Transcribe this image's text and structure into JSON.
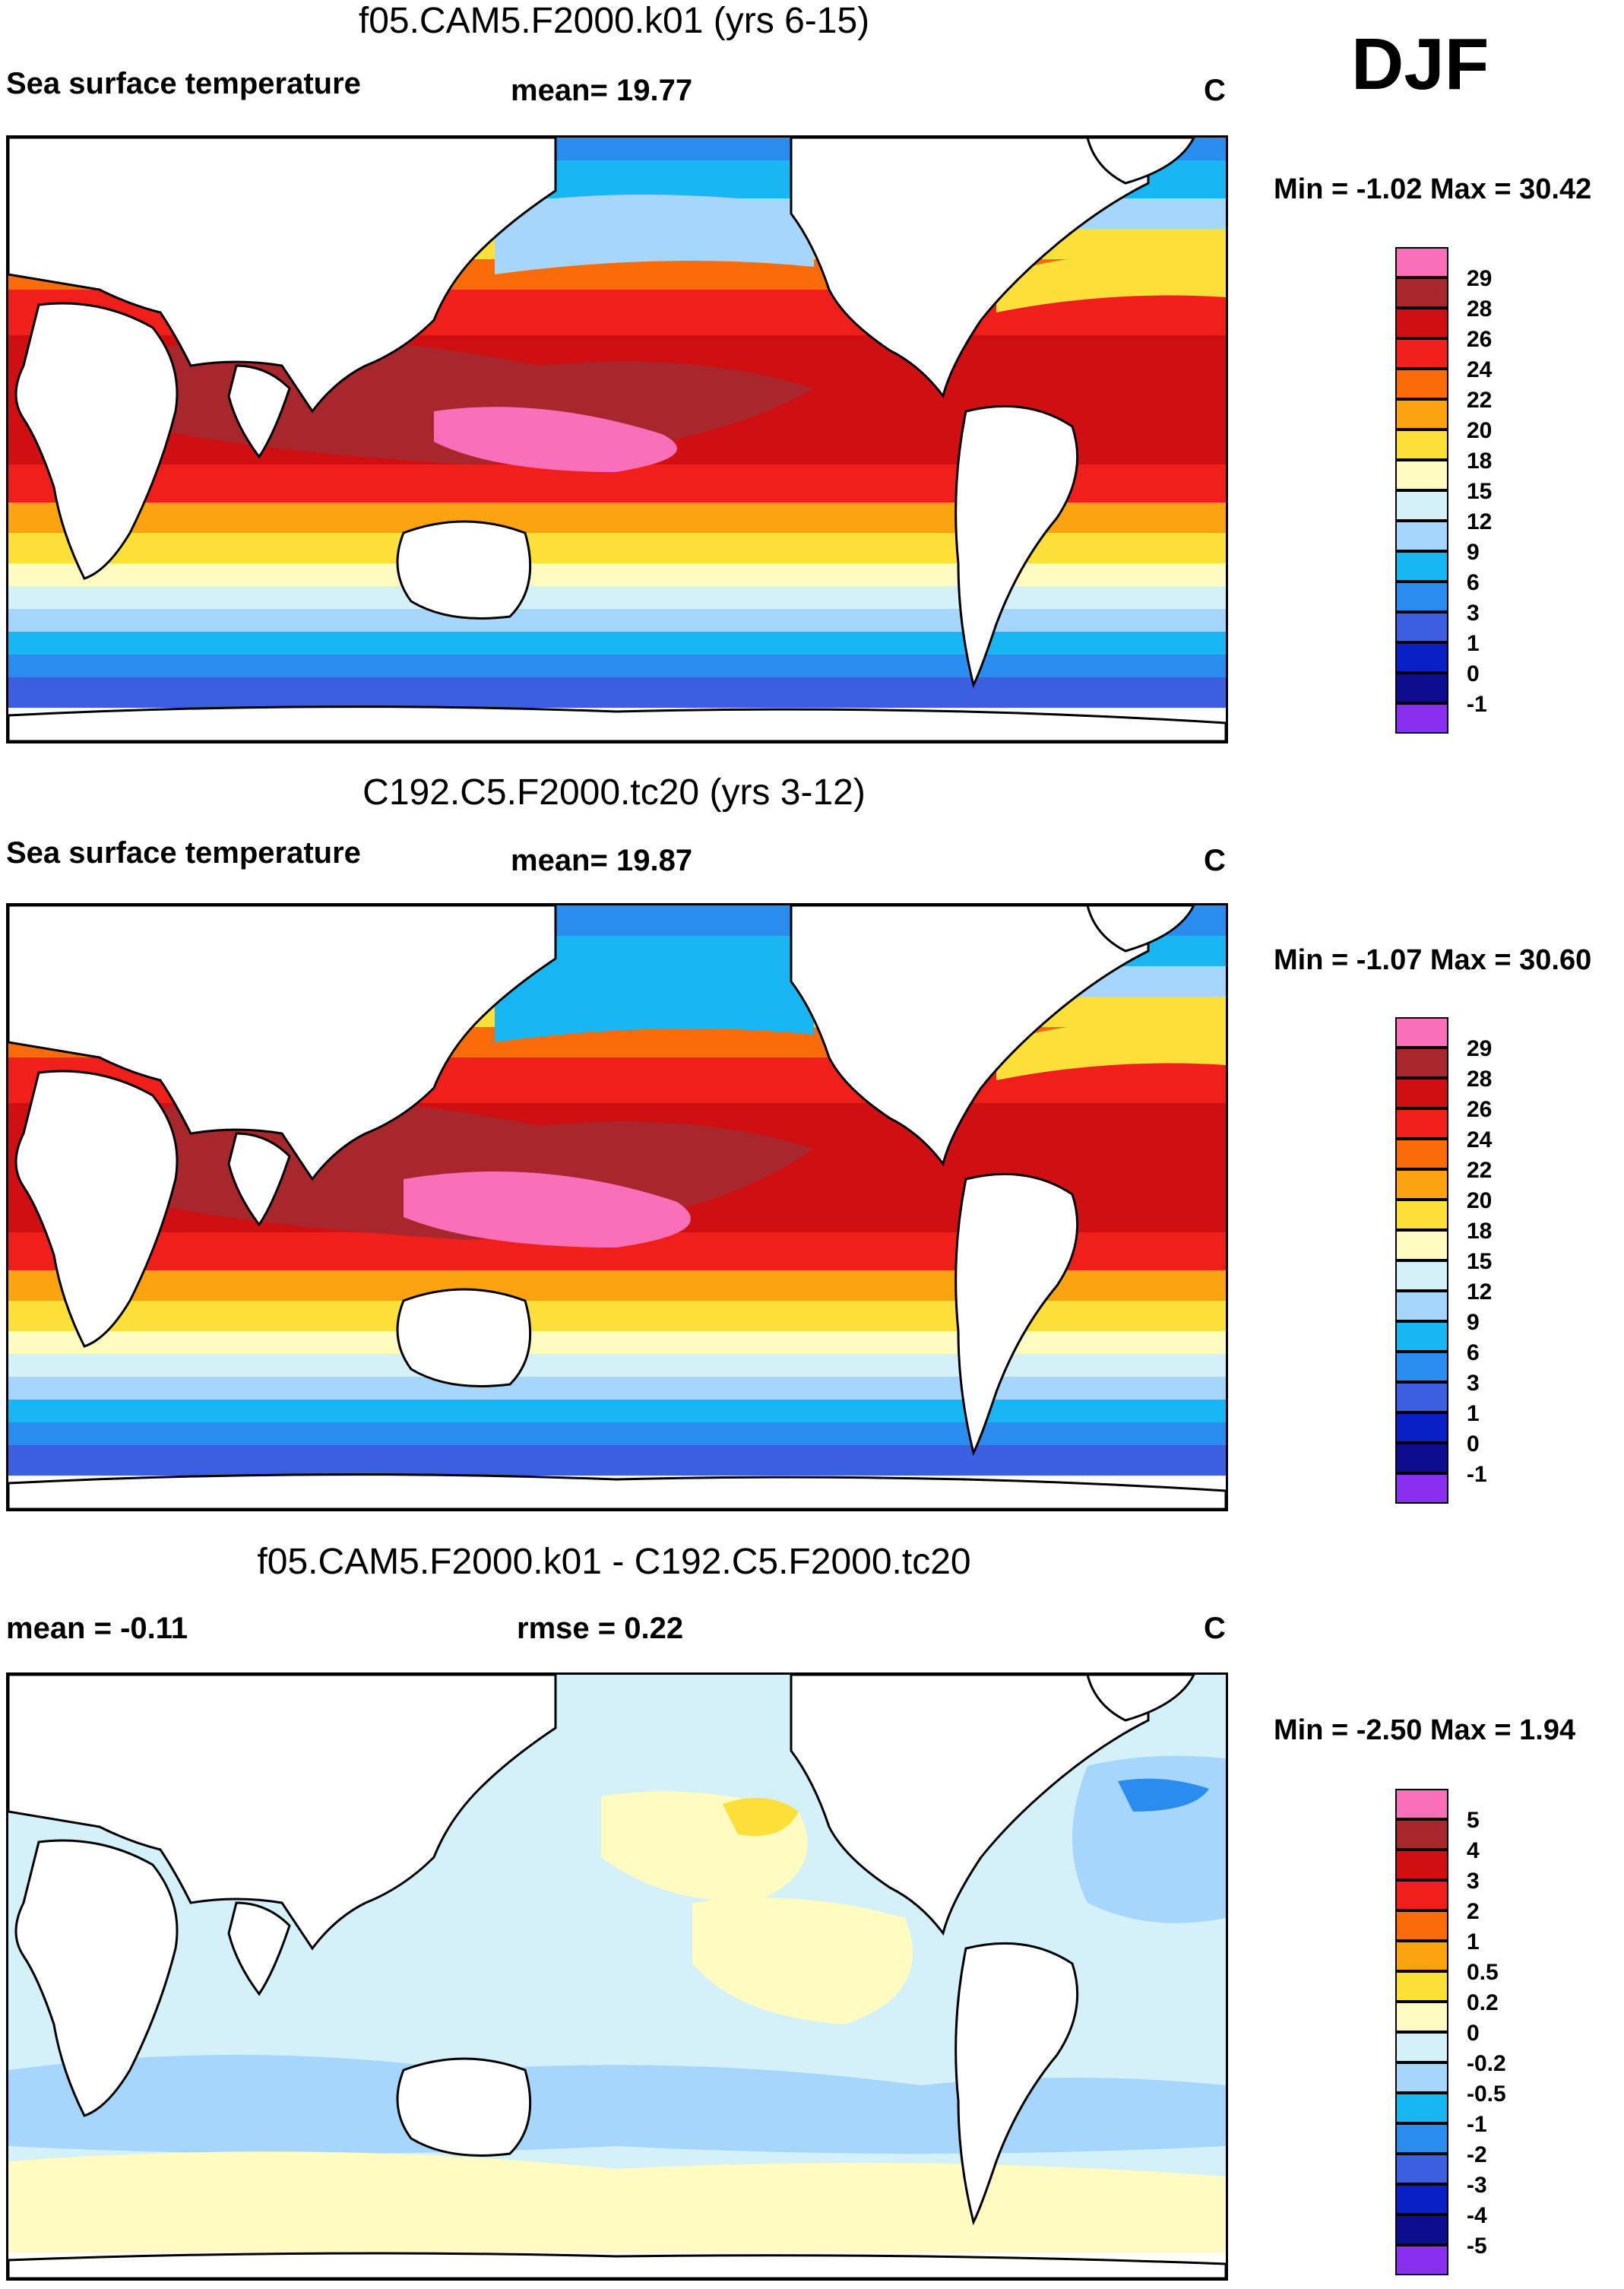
{
  "season": "DJF",
  "panels": [
    {
      "title": "f05.CAM5.F2000.k01 (yrs 6-15)",
      "left_label": "Sea surface temperature",
      "center_label": "mean=  19.77",
      "units": "C",
      "minmax": "Min =  -1.02 Max =  30.42",
      "legend": {
        "labels": [
          "29",
          "28",
          "26",
          "24",
          "22",
          "20",
          "18",
          "15",
          "12",
          "9",
          "6",
          "3",
          "1",
          "0",
          "-1"
        ],
        "colors": [
          "#f970b8",
          "#a8272c",
          "#cf0f12",
          "#f01f1a",
          "#fa6b0a",
          "#fca310",
          "#fde03a",
          "#fffbc1",
          "#d4f1fa",
          "#a6d6fb",
          "#19b6f4",
          "#2b8cf0",
          "#3b5fde",
          "#0920c6",
          "#0c0e8f",
          "#8a2ef0"
        ],
        "note": "colors listed top to bottom"
      },
      "map": "full-field"
    },
    {
      "title": "C192.C5.F2000.tc20 (yrs 3-12)",
      "left_label": "Sea surface temperature",
      "center_label": "mean=  19.87",
      "units": "C",
      "minmax": "Min =  -1.07 Max =  30.60",
      "legend": {
        "labels": [
          "29",
          "28",
          "26",
          "24",
          "22",
          "20",
          "18",
          "15",
          "12",
          "9",
          "6",
          "3",
          "1",
          "0",
          "-1"
        ],
        "colors": [
          "#f970b8",
          "#a8272c",
          "#cf0f12",
          "#f01f1a",
          "#fa6b0a",
          "#fca310",
          "#fde03a",
          "#fffbc1",
          "#d4f1fa",
          "#a6d6fb",
          "#19b6f4",
          "#2b8cf0",
          "#3b5fde",
          "#0920c6",
          "#0c0e8f",
          "#8a2ef0"
        ]
      },
      "map": "full-field"
    },
    {
      "title": "f05.CAM5.F2000.k01 - C192.C5.F2000.tc20",
      "left_label": "mean =  -0.11",
      "center_label": "rmse =   0.22",
      "units": "C",
      "minmax": "Min =  -2.50 Max =   1.94",
      "legend": {
        "labels": [
          "5",
          "4",
          "3",
          "2",
          "1",
          "0.5",
          "0.2",
          "0",
          "-0.2",
          "-0.5",
          "-1",
          "-2",
          "-3",
          "-4",
          "-5"
        ],
        "colors": [
          "#f970b8",
          "#a8272c",
          "#cf0f12",
          "#f01f1a",
          "#fa6b0a",
          "#fca310",
          "#fde03a",
          "#fffbc1",
          "#d4f1fa",
          "#a6d6fb",
          "#19b6f4",
          "#2b8cf0",
          "#3b5fde",
          "#0920c6",
          "#0c0e8f",
          "#8a2ef0"
        ]
      },
      "map": "difference"
    }
  ]
}
